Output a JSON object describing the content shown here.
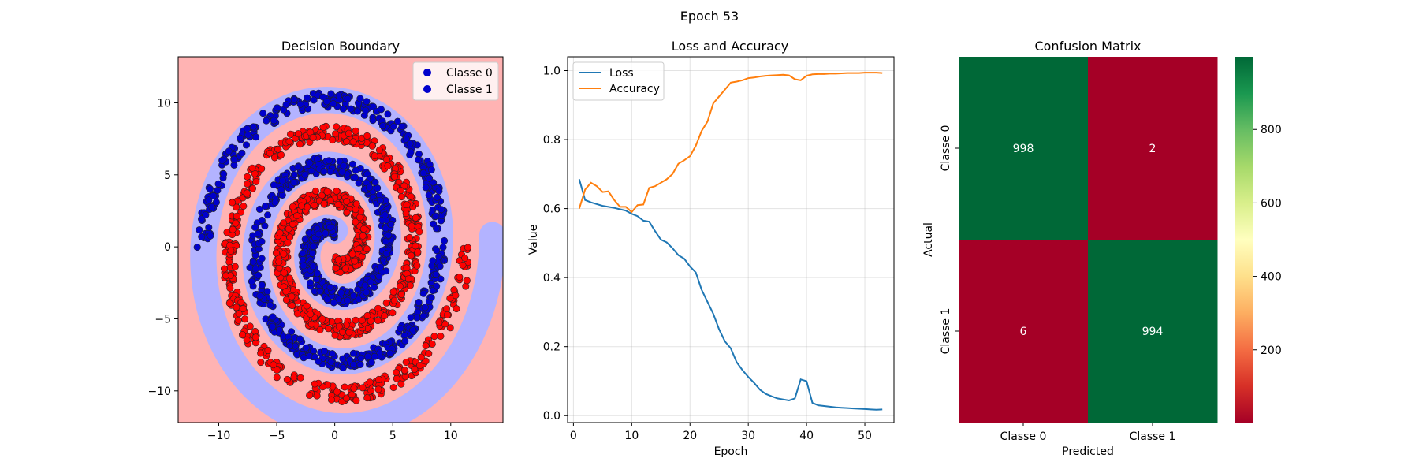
{
  "figure": {
    "suptitle": "Epoch 53"
  },
  "colors": {
    "class0_region": "#b3b3ff",
    "class1_region": "#ffb3b3",
    "class0_points": "#0000cc",
    "class1_points": "#ff0000",
    "loss": "#1f77b4",
    "accuracy": "#ff7f0e",
    "cm_high": "#006837",
    "cm_low": "#a50026"
  },
  "chart_data": [
    {
      "type": "scatter",
      "title": "Decision Boundary",
      "xlabel": "",
      "ylabel": "",
      "xlim": [
        -13.5,
        14.5
      ],
      "ylim": [
        -12.2,
        13.2
      ],
      "x_ticks": [
        -10,
        -5,
        0,
        5,
        10
      ],
      "y_ticks": [
        -10,
        -5,
        0,
        5,
        10
      ],
      "grid": false,
      "legend_position": "top-right",
      "legend": [
        "Classe 0",
        "Classe 1"
      ],
      "spirals": [
        {
          "name": "Classe 0",
          "theta_start": 1.57,
          "theta_end": 15.71,
          "radius_per_radian": 0.72,
          "angle_offset": 0,
          "points": 1000
        },
        {
          "name": "Classe 1",
          "theta_start": 1.57,
          "theta_end": 15.71,
          "radius_per_radian": 0.72,
          "angle_offset": 3.1416,
          "points": 1000
        }
      ]
    },
    {
      "type": "line",
      "title": "Loss and Accuracy",
      "xlabel": "Epoch",
      "ylabel": "Value",
      "xlim": [
        -1,
        55
      ],
      "ylim": [
        -0.02,
        1.04
      ],
      "x_ticks": [
        0,
        10,
        20,
        30,
        40,
        50
      ],
      "y_ticks": [
        0.0,
        0.2,
        0.4,
        0.6,
        0.8,
        1.0
      ],
      "grid": true,
      "legend_position": "top-left",
      "x": [
        1,
        2,
        3,
        4,
        5,
        6,
        7,
        8,
        9,
        10,
        11,
        12,
        13,
        14,
        15,
        16,
        17,
        18,
        19,
        20,
        21,
        22,
        23,
        24,
        25,
        26,
        27,
        28,
        29,
        30,
        31,
        32,
        33,
        34,
        35,
        36,
        37,
        38,
        39,
        40,
        41,
        42,
        43,
        44,
        45,
        46,
        47,
        48,
        49,
        50,
        51,
        52,
        53
      ],
      "series": [
        {
          "name": "Loss",
          "values": [
            0.685,
            0.625,
            0.618,
            0.613,
            0.608,
            0.605,
            0.602,
            0.598,
            0.594,
            0.585,
            0.578,
            0.565,
            0.562,
            0.535,
            0.51,
            0.502,
            0.485,
            0.465,
            0.455,
            0.432,
            0.415,
            0.365,
            0.33,
            0.295,
            0.25,
            0.215,
            0.195,
            0.155,
            0.132,
            0.112,
            0.095,
            0.075,
            0.063,
            0.056,
            0.05,
            0.047,
            0.044,
            0.05,
            0.105,
            0.1,
            0.037,
            0.03,
            0.028,
            0.026,
            0.024,
            0.023,
            0.022,
            0.021,
            0.02,
            0.019,
            0.018,
            0.017,
            0.018
          ]
        },
        {
          "name": "Accuracy",
          "values": [
            0.6,
            0.655,
            0.675,
            0.665,
            0.648,
            0.65,
            0.625,
            0.605,
            0.605,
            0.59,
            0.61,
            0.612,
            0.66,
            0.665,
            0.675,
            0.685,
            0.7,
            0.73,
            0.74,
            0.752,
            0.782,
            0.825,
            0.852,
            0.905,
            0.925,
            0.945,
            0.965,
            0.968,
            0.972,
            0.978,
            0.98,
            0.983,
            0.985,
            0.986,
            0.987,
            0.988,
            0.986,
            0.975,
            0.972,
            0.985,
            0.989,
            0.99,
            0.99,
            0.991,
            0.991,
            0.992,
            0.993,
            0.993,
            0.993,
            0.994,
            0.994,
            0.994,
            0.993
          ]
        }
      ]
    },
    {
      "type": "heatmap",
      "title": "Confusion Matrix",
      "xlabel": "Predicted",
      "ylabel": "Actual",
      "x_categories": [
        "Classe 0",
        "Classe 1"
      ],
      "y_categories": [
        "Classe 0",
        "Classe 1"
      ],
      "values": [
        [
          998,
          2
        ],
        [
          6,
          994
        ]
      ],
      "colorbar": {
        "min": 2,
        "max": 998,
        "ticks": [
          200,
          400,
          600,
          800
        ],
        "colormap": "RdYlGn"
      }
    }
  ]
}
